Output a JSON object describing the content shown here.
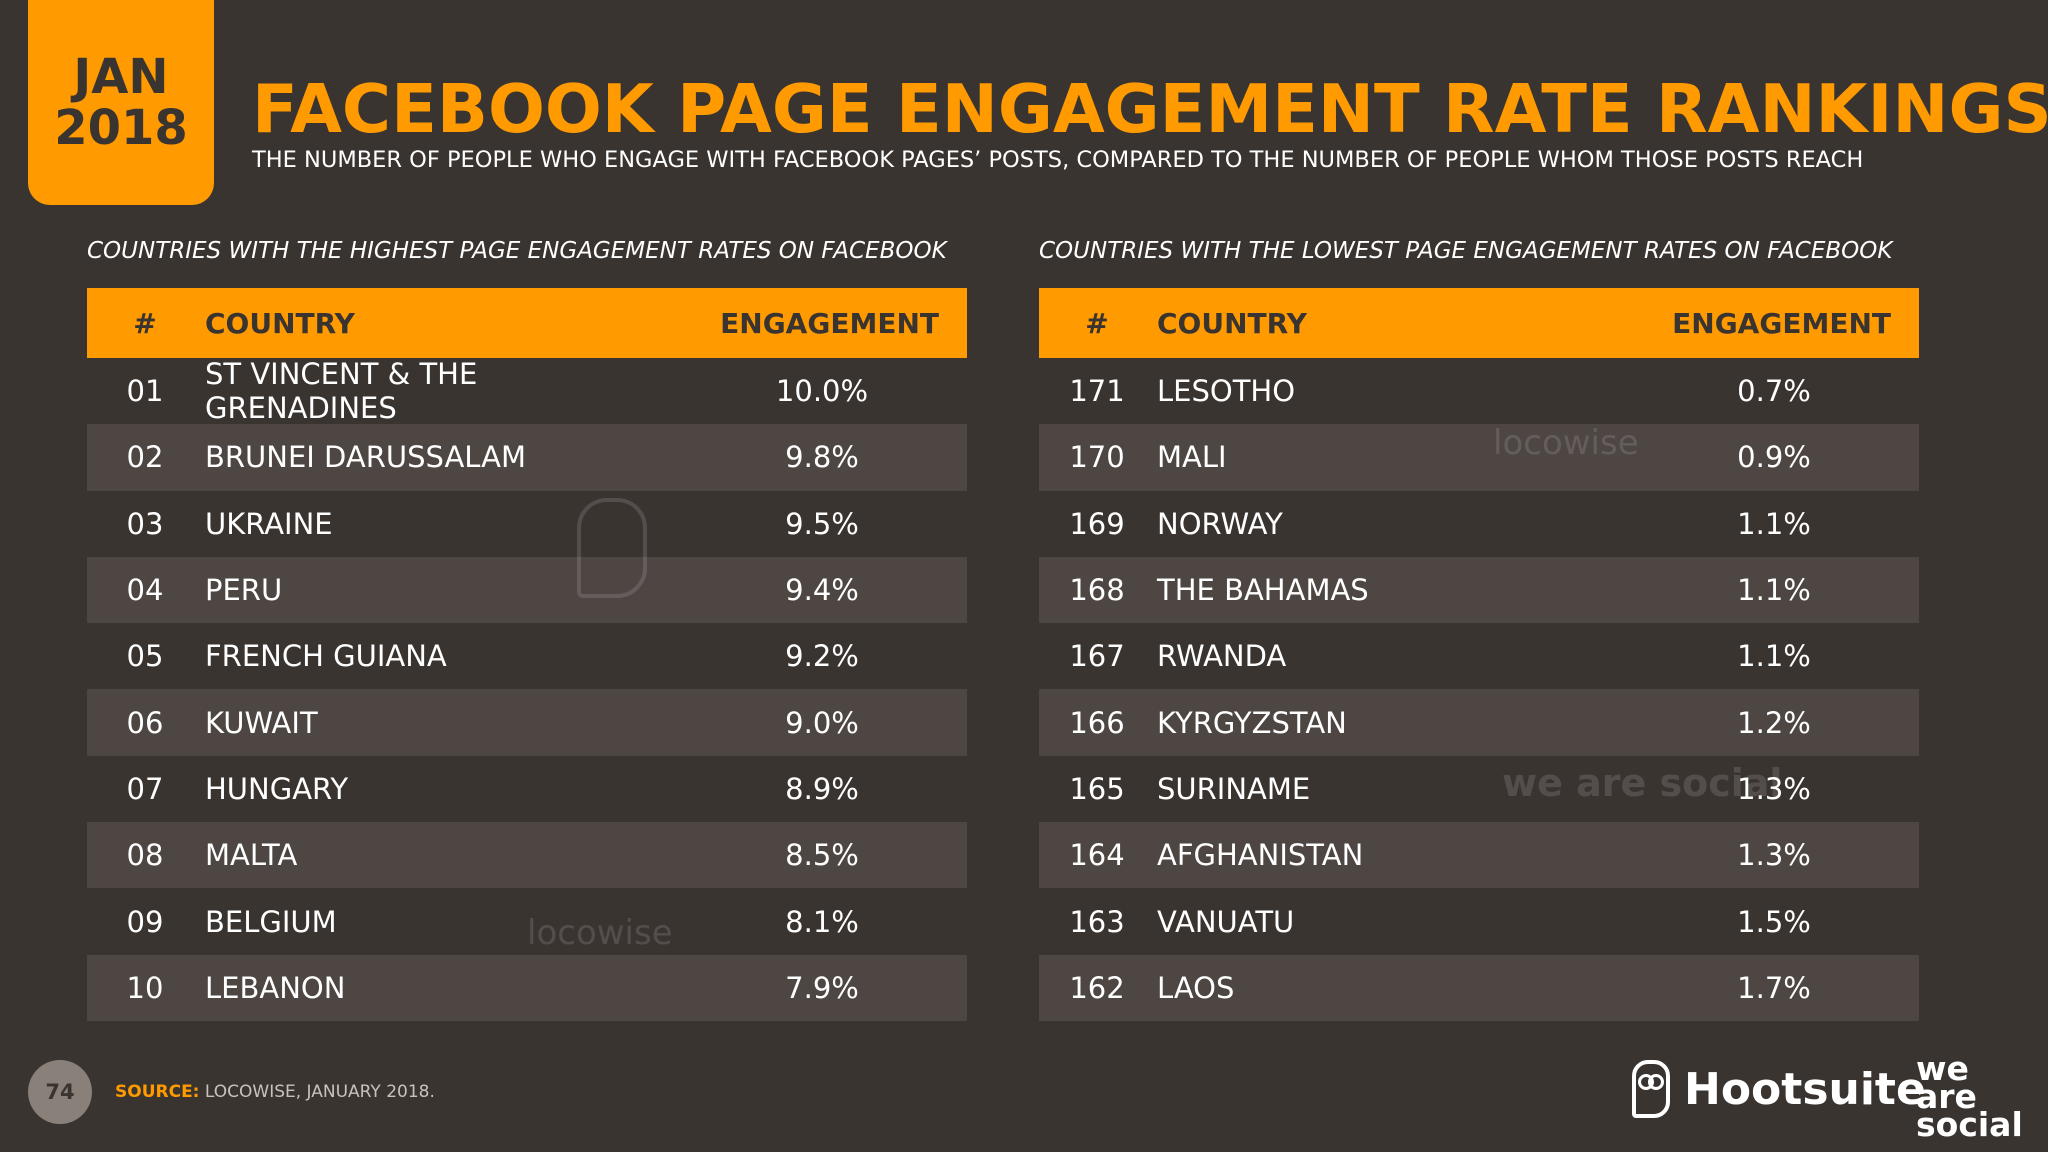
{
  "badge": {
    "month": "JAN",
    "year": "2018"
  },
  "title": "FACEBOOK PAGE ENGAGEMENT RATE RANKINGS",
  "subtitle": "THE NUMBER OF PEOPLE WHO ENGAGE WITH FACEBOOK PAGES’ POSTS, COMPARED TO THE NUMBER OF PEOPLE WHOM THOSE POSTS REACH",
  "colors": {
    "accent": "#ff9a00",
    "background": "#3a3431",
    "row_alt": "#4d4643"
  },
  "highest": {
    "heading": "COUNTRIES WITH THE HIGHEST PAGE ENGAGEMENT RATES ON FACEBOOK",
    "columns": {
      "rank": "#",
      "country": "COUNTRY",
      "engagement": "ENGAGEMENT"
    },
    "rows": [
      {
        "rank": "01",
        "country": "ST VINCENT & THE GRENADINES",
        "engagement": "10.0%"
      },
      {
        "rank": "02",
        "country": "BRUNEI DARUSSALAM",
        "engagement": "9.8%"
      },
      {
        "rank": "03",
        "country": "UKRAINE",
        "engagement": "9.5%"
      },
      {
        "rank": "04",
        "country": "PERU",
        "engagement": "9.4%"
      },
      {
        "rank": "05",
        "country": "FRENCH GUIANA",
        "engagement": "9.2%"
      },
      {
        "rank": "06",
        "country": "KUWAIT",
        "engagement": "9.0%"
      },
      {
        "rank": "07",
        "country": "HUNGARY",
        "engagement": "8.9%"
      },
      {
        "rank": "08",
        "country": "MALTA",
        "engagement": "8.5%"
      },
      {
        "rank": "09",
        "country": "BELGIUM",
        "engagement": "8.1%"
      },
      {
        "rank": "10",
        "country": "LEBANON",
        "engagement": "7.9%"
      }
    ]
  },
  "lowest": {
    "heading": "COUNTRIES WITH THE LOWEST PAGE ENGAGEMENT RATES ON FACEBOOK",
    "columns": {
      "rank": "#",
      "country": "COUNTRY",
      "engagement": "ENGAGEMENT"
    },
    "rows": [
      {
        "rank": "171",
        "country": "LESOTHO",
        "engagement": "0.7%"
      },
      {
        "rank": "170",
        "country": "MALI",
        "engagement": "0.9%"
      },
      {
        "rank": "169",
        "country": "NORWAY",
        "engagement": "1.1%"
      },
      {
        "rank": "168",
        "country": "THE BAHAMAS",
        "engagement": "1.1%"
      },
      {
        "rank": "167",
        "country": "RWANDA",
        "engagement": "1.1%"
      },
      {
        "rank": "166",
        "country": "KYRGYZSTAN",
        "engagement": "1.2%"
      },
      {
        "rank": "165",
        "country": "SURINAME",
        "engagement": "1.3%"
      },
      {
        "rank": "164",
        "country": "AFGHANISTAN",
        "engagement": "1.3%"
      },
      {
        "rank": "163",
        "country": "VANUATU",
        "engagement": "1.5%"
      },
      {
        "rank": "162",
        "country": "LAOS",
        "engagement": "1.7%"
      }
    ]
  },
  "watermarks": {
    "locowise": "locowise",
    "we_are_social": "we are social"
  },
  "footer": {
    "page_number": "74",
    "source_label": "SOURCE:",
    "source_text": "LOCOWISE, JANUARY 2018.",
    "brand_hootsuite": "Hootsuite",
    "brand_was_1": "we",
    "brand_was_2": "are",
    "brand_was_3": "social",
    "icons": [
      "hootsuite-owl-icon"
    ]
  }
}
